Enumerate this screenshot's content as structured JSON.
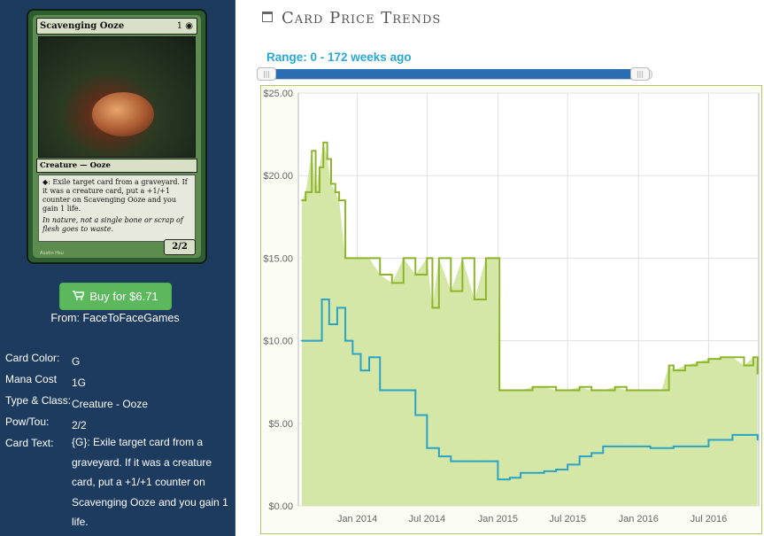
{
  "card": {
    "name": "Scavenging Ooze",
    "mana_symbols": "1 ◉",
    "type_line": "Creature — Ooze",
    "rules_text": "◆: Exile target card from a graveyard. If it was a creature card, put a +1/+1 counter on Scavenging Ooze and you gain 1 life.",
    "flavor_text": "In nature, not a single bone or scrap of flesh goes to waste.",
    "pt": "2/2",
    "artist": "Austin Hsu"
  },
  "buy": {
    "label": "Buy for $6.71",
    "icon": "cart-icon"
  },
  "from": "From: FaceToFaceGames",
  "attributes": {
    "color": {
      "label": "Card Color:",
      "value": "G"
    },
    "mana": {
      "label": "Mana Cost",
      "value": "1G"
    },
    "type": {
      "label": "Type & Class:",
      "value": "Creature - Ooze"
    },
    "pow": {
      "label": "Pow/Tou:",
      "value": "2/2"
    },
    "text": {
      "label": "Card Text:",
      "value": "{G}: Exile target card from a graveyard. If it was a creature card, put a +1/+1 counter on Scavenging Ooze and you gain 1 life."
    }
  },
  "header": {
    "title": "Card Price Trends",
    "icon": "calendar-icon"
  },
  "range": {
    "label": "Range: 0 - 172 weeks ago"
  },
  "colors": {
    "green_line": "#8db52a",
    "green_fill": "#d4e7a6",
    "blue_line": "#2aa3c4",
    "frame": "#b0c76a"
  },
  "chart_data": {
    "type": "line",
    "y_tick_labels": [
      "$0.00",
      "$5.00",
      "$10.00",
      "$15.00",
      "$20.00",
      "$25.00"
    ],
    "x_tick_labels": [
      "Jan 2014",
      "Jul 2014",
      "Jan 2015",
      "Jul 2015",
      "Jan 2016",
      "Jul 2016"
    ],
    "ylim": [
      0,
      25
    ],
    "x_range": [
      "2013-08",
      "2016-11"
    ],
    "grid": true,
    "series": [
      {
        "color": "#8db52a",
        "fill": true,
        "x": [
          "2013-08-10",
          "2013-08-20",
          "2013-09-05",
          "2013-09-15",
          "2013-09-25",
          "2013-10-05",
          "2013-10-15",
          "2013-10-25",
          "2013-11-05",
          "2013-11-15",
          "2013-12-01",
          "2014-01-01",
          "2014-02-01",
          "2014-03-01",
          "2014-04-01",
          "2014-05-01",
          "2014-06-01",
          "2014-07-01",
          "2014-07-15",
          "2014-08-01",
          "2014-09-01",
          "2014-10-01",
          "2014-11-01",
          "2014-12-01",
          "2014-12-31",
          "2015-01-05",
          "2015-02-01",
          "2015-03-01",
          "2015-04-01",
          "2015-05-01",
          "2015-06-01",
          "2015-07-01",
          "2015-08-01",
          "2015-09-01",
          "2015-10-01",
          "2015-11-01",
          "2015-12-01",
          "2016-01-01",
          "2016-02-01",
          "2016-03-01",
          "2016-03-20",
          "2016-04-01",
          "2016-05-01",
          "2016-06-01",
          "2016-07-01",
          "2016-08-01",
          "2016-09-01",
          "2016-10-01",
          "2016-10-25",
          "2016-11-01",
          "2016-11-05"
        ],
        "values": [
          18.5,
          19,
          21.5,
          19,
          20.5,
          22,
          21,
          19.5,
          19,
          18.5,
          15,
          15,
          15,
          14,
          13.5,
          15,
          14,
          15,
          12,
          15,
          13,
          15,
          12.5,
          15,
          15,
          7,
          7,
          7,
          7.2,
          7.2,
          7,
          7,
          7.2,
          7,
          7,
          7.2,
          7,
          7,
          7,
          7,
          8.5,
          8.2,
          8.5,
          8.7,
          8.9,
          9,
          9,
          8.5,
          9,
          9,
          8
        ]
      },
      {
        "color": "#2aa3c4",
        "fill": false,
        "x": [
          "2013-08-10",
          "2013-09-10",
          "2013-10-01",
          "2013-10-20",
          "2013-11-10",
          "2013-12-01",
          "2013-12-20",
          "2014-01-10",
          "2014-02-01",
          "2014-03-01",
          "2014-04-01",
          "2014-05-01",
          "2014-06-01",
          "2014-07-01",
          "2014-08-01",
          "2014-09-01",
          "2014-10-01",
          "2014-11-01",
          "2014-12-01",
          "2015-01-01",
          "2015-02-01",
          "2015-03-01",
          "2015-04-01",
          "2015-05-01",
          "2015-06-01",
          "2015-07-01",
          "2015-08-01",
          "2015-09-01",
          "2015-10-01",
          "2015-11-01",
          "2015-12-01",
          "2016-01-01",
          "2016-02-01",
          "2016-03-01",
          "2016-04-01",
          "2016-05-01",
          "2016-06-01",
          "2016-07-01",
          "2016-08-01",
          "2016-09-01",
          "2016-10-01",
          "2016-11-05"
        ],
        "values": [
          10,
          10,
          12.5,
          11,
          12,
          10,
          9.2,
          8.2,
          9,
          7,
          7,
          7,
          5.5,
          3.5,
          3,
          2.7,
          2.7,
          2.7,
          2.7,
          1.6,
          1.7,
          2,
          2,
          2.1,
          2.2,
          2.5,
          3,
          3.2,
          3.6,
          3.6,
          3.6,
          3.6,
          3.5,
          3.5,
          3.6,
          3.6,
          3.6,
          4,
          4,
          4.3,
          4.3,
          4
        ]
      }
    ]
  }
}
